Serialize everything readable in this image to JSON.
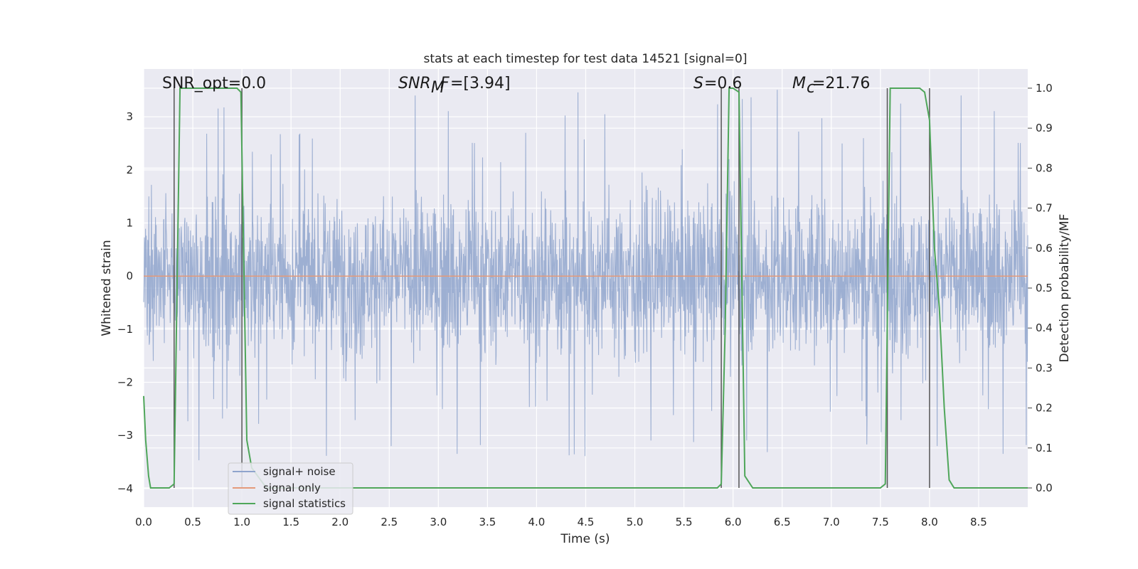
{
  "chart_data": {
    "type": "line",
    "title": "stats at each timestep for test data 14521 [signal=0]",
    "xlabel": "Time (s)",
    "ylabel": "Whitened strain",
    "y2label": "Detection probability/MF",
    "xlim": [
      0.0,
      9.0
    ],
    "ylim": [
      -4.35,
      3.9
    ],
    "y2lim": [
      -0.048,
      1.048
    ],
    "xticks": [
      "0.0",
      "0.5",
      "1.0",
      "1.5",
      "2.0",
      "2.5",
      "3.0",
      "3.5",
      "4.0",
      "4.5",
      "5.0",
      "5.5",
      "6.0",
      "6.5",
      "7.0",
      "7.5",
      "8.0",
      "8.5"
    ],
    "yticks": [
      "−4",
      "−3",
      "−2",
      "−1",
      "0",
      "1",
      "2",
      "3"
    ],
    "y2ticks": [
      "0.0",
      "0.1",
      "0.2",
      "0.3",
      "0.4",
      "0.5",
      "0.6",
      "0.7",
      "0.8",
      "0.9",
      "1.0"
    ],
    "grid": true,
    "legend_position": "lower-left",
    "annotations": {
      "snr_opt": "SNR_opt=0.0",
      "snr_mf": "=[3.94]",
      "s": "=0.6",
      "mc": "=21.76"
    },
    "series": [
      {
        "name": "signal+ noise",
        "color": "#8fa4cc",
        "description_kind": "noise",
        "envelope": 1.8,
        "spike_max": 3.6,
        "spike_min": -4.0
      },
      {
        "name": "signal only",
        "color": "#e49a7a",
        "x": [
          0.0,
          9.0
        ],
        "y": [
          0.0,
          0.0
        ]
      },
      {
        "name": "signal statistics",
        "color": "#4fa65a",
        "axis": "right",
        "x": [
          0.0,
          0.02,
          0.05,
          0.07,
          0.26,
          0.31,
          0.37,
          0.95,
          0.99,
          1.05,
          1.1,
          1.25,
          5.84,
          5.88,
          5.92,
          5.96,
          6.0,
          6.06,
          6.12,
          6.2,
          7.5,
          7.55,
          7.6,
          7.65,
          7.9,
          7.95,
          8.0,
          8.05,
          8.1,
          8.15,
          8.2,
          8.25,
          9.0
        ],
        "y": [
          0.23,
          0.12,
          0.03,
          0.0,
          0.0,
          0.01,
          1.0,
          1.0,
          0.99,
          0.12,
          0.05,
          0.0,
          0.0,
          0.01,
          0.4,
          1.0,
          1.0,
          0.99,
          0.03,
          0.0,
          0.0,
          0.01,
          1.0,
          1.0,
          1.0,
          0.99,
          0.92,
          0.6,
          0.45,
          0.2,
          0.02,
          0.0,
          0.0
        ]
      }
    ],
    "vlines_x": [
      0.31,
      1.0,
      5.88,
      6.06,
      7.57,
      8.0
    ]
  }
}
